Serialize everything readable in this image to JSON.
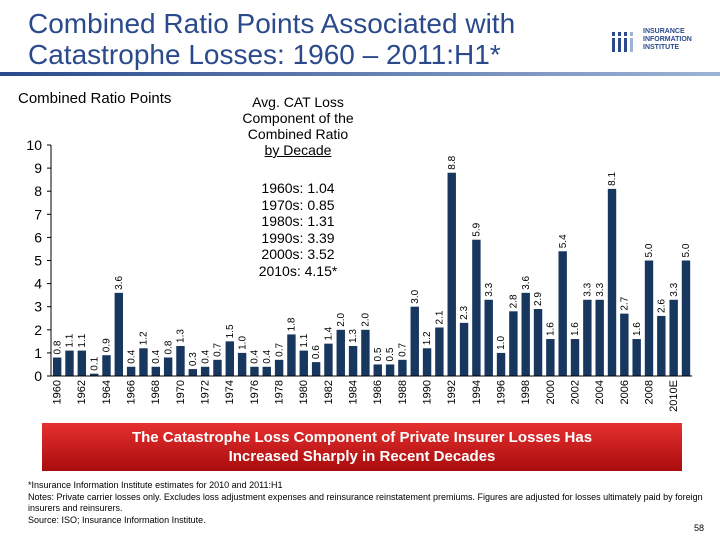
{
  "title": {
    "line1": "Combined Ratio Points Associated with",
    "line2": "Catastrophe Losses: 1960 – 2011:H1*"
  },
  "logo": {
    "line1": "INSURANCE",
    "line2": "INFORMATION",
    "line3": "INSTITUTE"
  },
  "callout": {
    "heading": [
      "Avg. CAT  Loss",
      "Component of the",
      "Combined Ratio",
      "by Decade"
    ],
    "items": [
      "1960s: 1.04",
      "1970s: 0.85",
      "1980s: 1.31",
      "1990s: 3.39",
      "2000s: 3.52",
      "2010s: 4.15*"
    ]
  },
  "banner": {
    "line1": "The Catastrophe Loss Component of Private Insurer Losses Has",
    "line2": "Increased Sharply in Recent Decades"
  },
  "notes": {
    "footnote": "*Insurance Information Institute estimates for 2010 and 2011:H1",
    "notes_text": "Notes: Private carrier losses only.  Excludes loss adjustment expenses and reinsurance reinstatement premiums. Figures are adjusted for losses ultimately paid by foreign insurers and reinsurers.",
    "source": "Source: ISO; Insurance Information Institute."
  },
  "page_number": "58",
  "chart_data": {
    "type": "bar",
    "title": "Combined Ratio Points Associated with Catastrophe Losses: 1960 – 2011:H1*",
    "ylabel": "Combined Ratio Points",
    "ylim": [
      0,
      10
    ],
    "yticks": [
      0,
      1,
      2,
      3,
      4,
      5,
      6,
      7,
      8,
      9,
      10
    ],
    "grid": false,
    "bar_color": "#17375e",
    "categories": [
      "1960",
      "1961",
      "1962",
      "1963",
      "1964",
      "1965",
      "1966",
      "1967",
      "1968",
      "1969",
      "1970",
      "1971",
      "1972",
      "1973",
      "1974",
      "1975",
      "1976",
      "1977",
      "1978",
      "1979",
      "1980",
      "1981",
      "1982",
      "1983",
      "1984",
      "1985",
      "1986",
      "1987",
      "1988",
      "1989",
      "1990",
      "1991",
      "1992",
      "1993",
      "1994",
      "1995",
      "1996",
      "1997",
      "1998",
      "1999",
      "2000",
      "2001",
      "2002",
      "2003",
      "2004",
      "2005",
      "2006",
      "2007",
      "2008",
      "2009",
      "2010E",
      "2011:H1"
    ],
    "x_tick_labels": [
      "1960",
      "",
      "1962",
      "",
      "1964",
      "",
      "1966",
      "",
      "1968",
      "",
      "1970",
      "",
      "1972",
      "",
      "1974",
      "",
      "1976",
      "",
      "1978",
      "",
      "1980",
      "",
      "1982",
      "",
      "1984",
      "",
      "1986",
      "",
      "1988",
      "",
      "1990",
      "",
      "1992",
      "",
      "1994",
      "",
      "1996",
      "",
      "1998",
      "",
      "2000",
      "",
      "2002",
      "",
      "2004",
      "",
      "2006",
      "",
      "2008",
      "",
      "2010E",
      ""
    ],
    "values": [
      0.8,
      1.1,
      1.1,
      0.1,
      0.9,
      3.6,
      0.4,
      1.2,
      0.4,
      0.8,
      1.3,
      0.3,
      0.4,
      0.7,
      1.5,
      1.0,
      0.4,
      0.4,
      0.7,
      1.8,
      1.1,
      0.6,
      1.4,
      2.0,
      1.3,
      2.0,
      0.5,
      0.5,
      0.7,
      3.0,
      1.2,
      2.1,
      8.8,
      2.3,
      5.9,
      3.3,
      1.0,
      2.8,
      3.6,
      2.9,
      1.6,
      5.4,
      1.6,
      3.3,
      3.3,
      8.1,
      2.7,
      1.6,
      5.0,
      2.6,
      3.3,
      5.0
    ],
    "data_labels": [
      "0.8",
      "1.1",
      "1.1",
      "0.1",
      "0.9",
      "3.6",
      "0.4",
      "1.2",
      "0.4",
      "0.8",
      "1.3",
      "0.3",
      "0.4",
      "0.7",
      "1.5",
      "1.0",
      "0.4",
      "0.4",
      "0.7",
      "1.8",
      "1.1",
      "0.6",
      "1.4",
      "2.0",
      "1.3",
      "2.0",
      "0.5",
      "0.5",
      "0.7",
      "3.0",
      "1.2",
      "2.1",
      "8.8",
      "2.3",
      "5.9",
      "3.3",
      "1.0",
      "2.8",
      "3.6",
      "2.9",
      "1.6",
      "5.4",
      "1.6",
      "3.3",
      "3.3",
      "8.1",
      "2.7",
      "1.6",
      "5.0",
      "2.6",
      "3.3",
      "5.0"
    ]
  }
}
